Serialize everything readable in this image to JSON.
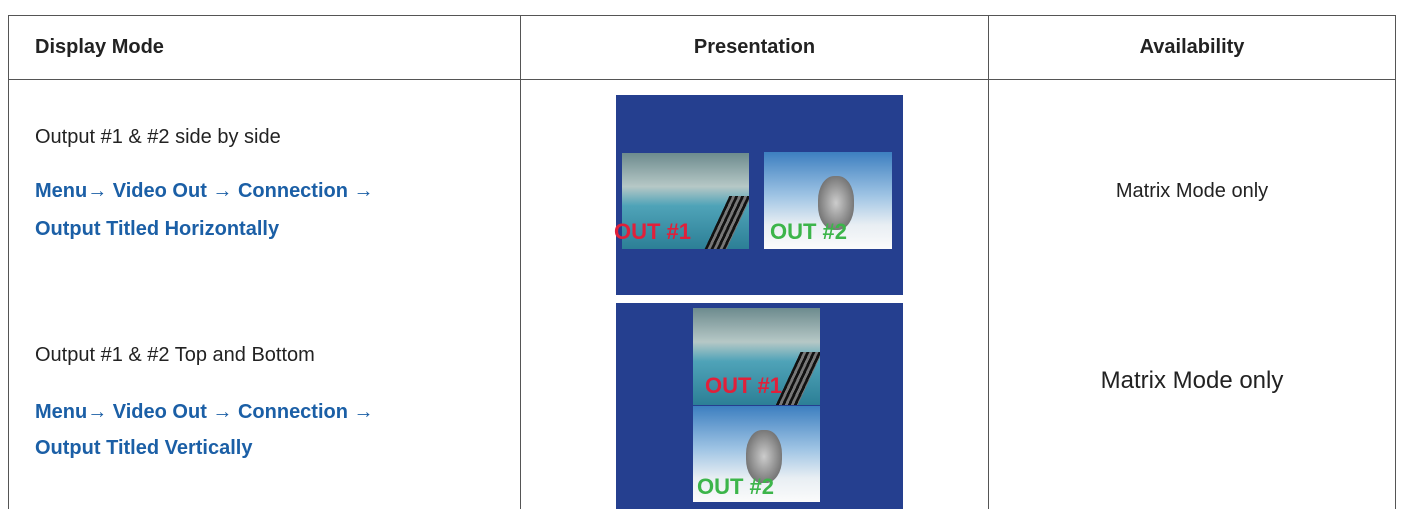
{
  "table": {
    "headers": [
      "Display Mode",
      "Presentation",
      "Availability"
    ],
    "rows": [
      {
        "mode": "Output #1 & #2 side by side",
        "menu": [
          "Menu→ Video Out → Connection →",
          "Output Titled Horizontally"
        ],
        "presentation_labels": [
          "OUT #1",
          "OUT #2"
        ],
        "availability": "Matrix Mode only"
      },
      {
        "mode": "Output #1 & #2 Top and Bottom",
        "menu": [
          "Menu→ Video Out → Connection →",
          "Output Titled Vertically"
        ],
        "presentation_labels": [
          "OUT #1",
          "OUT #2"
        ],
        "availability": "Matrix Mode only"
      }
    ]
  }
}
